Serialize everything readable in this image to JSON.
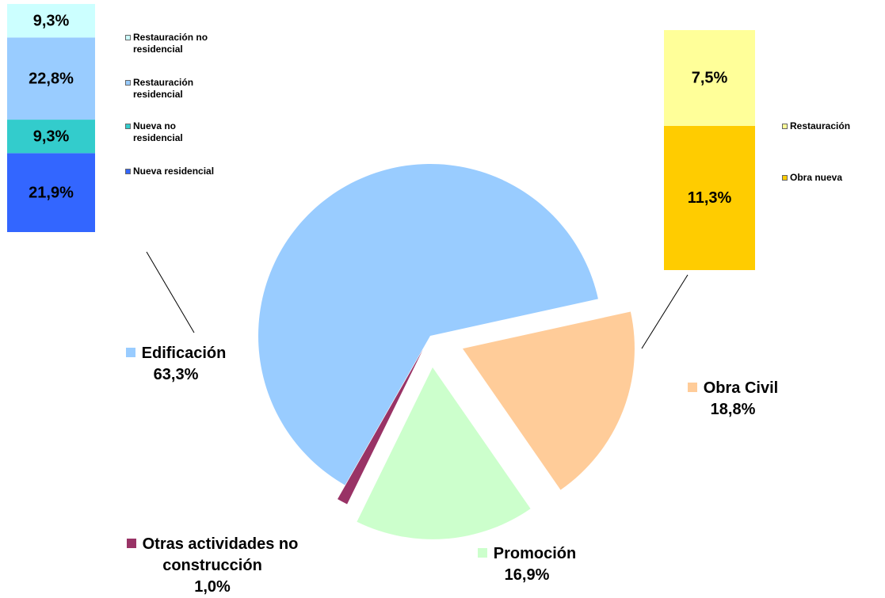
{
  "chart_data": [
    {
      "type": "pie",
      "categories": [
        "Obra Civil",
        "Promoción",
        "Otras actividades no construcción",
        "Edificación"
      ],
      "values": [
        18.8,
        16.9,
        1.0,
        63.3
      ],
      "value_labels": [
        "18,8%",
        "16,9%",
        "1,0%",
        "63,3%"
      ],
      "colors": [
        "#ffcc99",
        "#ccffcc",
        "#993366",
        "#99ccff"
      ]
    },
    {
      "type": "bar",
      "stacked": true,
      "series": [
        {
          "name": "Nueva residencial",
          "color": "#3366ff",
          "values": [
            21.9
          ],
          "value_labels": [
            "21,9%"
          ]
        },
        {
          "name": "Nueva no residencial",
          "color": "#33cccc",
          "values": [
            9.3
          ],
          "value_labels": [
            "9,3%"
          ]
        },
        {
          "name": "Restauración residencial",
          "color": "#99ccff",
          "values": [
            22.8
          ],
          "value_labels": [
            "22,8%"
          ]
        },
        {
          "name": "Restauración no residencial",
          "color": "#ccffff",
          "values": [
            9.3
          ],
          "value_labels": [
            "9,3%"
          ]
        }
      ]
    },
    {
      "type": "bar",
      "stacked": true,
      "series": [
        {
          "name": "Obra nueva",
          "color": "#ffcc00",
          "values": [
            11.3
          ],
          "value_labels": [
            "11,3%"
          ]
        },
        {
          "name": "Restauración",
          "color": "#ffff99",
          "values": [
            7.5
          ],
          "value_labels": [
            "7,5%"
          ]
        }
      ]
    }
  ]
}
